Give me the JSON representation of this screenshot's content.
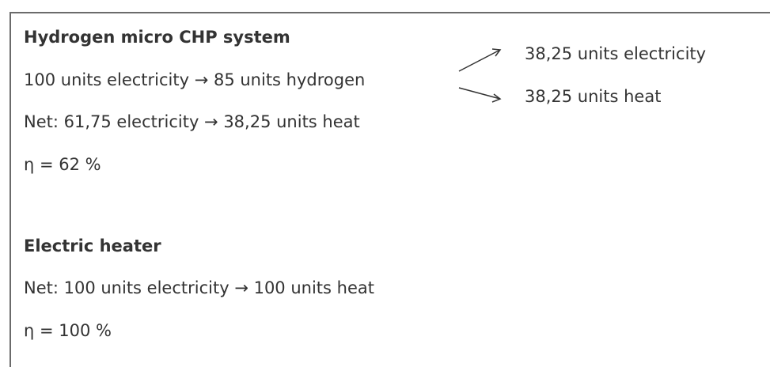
{
  "sections": [
    {
      "title": "Hydrogen micro CHP system",
      "lines": [
        "100 units electricity → 85 units hydrogen",
        "Net: 61,75 electricity → 38,25 units heat",
        "η = 62 %"
      ],
      "branches": [
        "38,25 units electricity",
        "38,25 units heat"
      ]
    },
    {
      "title": "Electric heater",
      "lines": [
        "Net: 100 units electricity → 100 units heat",
        "η = 100 %"
      ]
    }
  ]
}
